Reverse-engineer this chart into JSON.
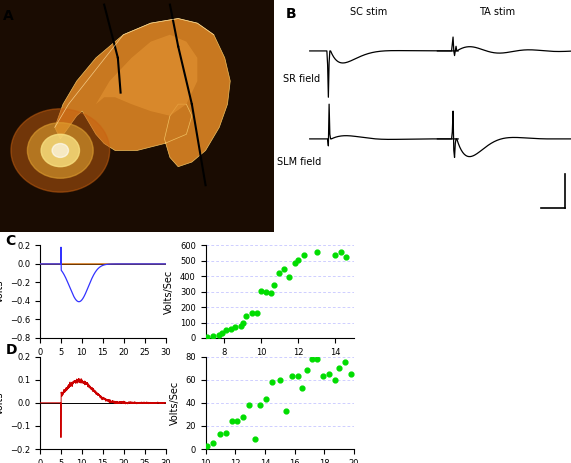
{
  "panel_C_waveform": {
    "color_blue": "#3333ff",
    "color_orange": "#cc6600",
    "stim_time": 5.0,
    "yticks": [
      -0.8,
      -0.6,
      -0.4,
      -0.2,
      0.0,
      0.2
    ],
    "xticks": [
      0,
      5,
      10,
      15,
      20,
      25,
      30
    ]
  },
  "panel_C_scatter": {
    "x_vals": [
      7.1,
      7.4,
      7.7,
      7.9,
      8.1,
      8.35,
      8.6,
      8.9,
      9.0,
      9.2,
      9.5,
      9.75,
      10.0,
      10.25,
      10.5,
      10.7,
      10.95,
      11.2,
      11.5,
      11.8,
      12.0,
      12.3,
      13.0,
      14.0,
      14.3,
      14.55
    ],
    "y_vals": [
      5,
      10,
      18,
      30,
      50,
      60,
      70,
      80,
      100,
      145,
      165,
      160,
      305,
      300,
      290,
      345,
      420,
      445,
      395,
      485,
      505,
      535,
      555,
      540,
      560,
      525
    ],
    "hlines": [
      100,
      200,
      300,
      400,
      500,
      600
    ],
    "hline_color": "#aaaaff",
    "color": "#00dd00"
  },
  "panel_D_waveform": {
    "color_red": "#cc0000",
    "stim_time": 5.0,
    "yticks": [
      -0.2,
      -0.1,
      0.0,
      0.1,
      0.2
    ],
    "xticks": [
      0,
      5,
      10,
      15,
      20,
      25,
      30
    ]
  },
  "panel_D_scatter": {
    "x_vals": [
      10.1,
      10.5,
      11.0,
      11.4,
      11.8,
      12.1,
      12.5,
      12.9,
      13.3,
      13.7,
      14.1,
      14.5,
      15.0,
      15.4,
      15.8,
      16.2,
      16.5,
      16.8,
      17.2,
      17.5,
      17.9,
      18.3,
      18.7,
      19.0,
      19.4,
      19.8
    ],
    "y_vals": [
      3,
      5,
      13,
      14,
      24,
      24,
      28,
      38,
      9,
      38,
      43,
      58,
      60,
      33,
      63,
      63,
      53,
      68,
      78,
      78,
      63,
      65,
      60,
      70,
      75,
      65
    ],
    "hlines": [
      20,
      40,
      60,
      80
    ],
    "hline_color": "#aaaaff",
    "color": "#00dd00"
  },
  "label_fontsize": 7,
  "panel_label_fontsize": 10,
  "tick_fontsize": 6,
  "background_color": "#ffffff"
}
